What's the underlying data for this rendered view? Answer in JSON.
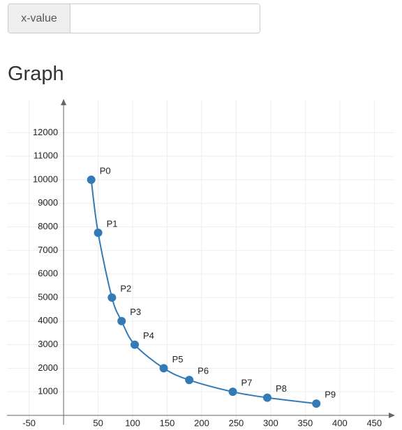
{
  "input": {
    "label": "x-value"
  },
  "heading": "Graph",
  "chart_data": {
    "type": "line",
    "x": [
      40,
      50,
      70,
      84,
      103,
      145,
      182,
      245,
      295,
      366
    ],
    "series": [
      {
        "values": [
          10000,
          7750,
          5000,
          4000,
          3000,
          2000,
          1500,
          1000,
          750,
          500
        ],
        "color": "#337ab7"
      }
    ],
    "point_labels": [
      "P0",
      "P1",
      "P2",
      "P3",
      "P4",
      "P5",
      "P6",
      "P7",
      "P8",
      "P9"
    ],
    "xlim": [
      -82,
      479
    ],
    "ylim": [
      -400,
      13400
    ],
    "xticks": [
      -50,
      50,
      100,
      150,
      200,
      250,
      300,
      350,
      400,
      450
    ],
    "yticks": [
      1000,
      2000,
      3000,
      4000,
      5000,
      6000,
      7000,
      8000,
      9000,
      10000,
      11000,
      12000
    ],
    "grid": true
  }
}
